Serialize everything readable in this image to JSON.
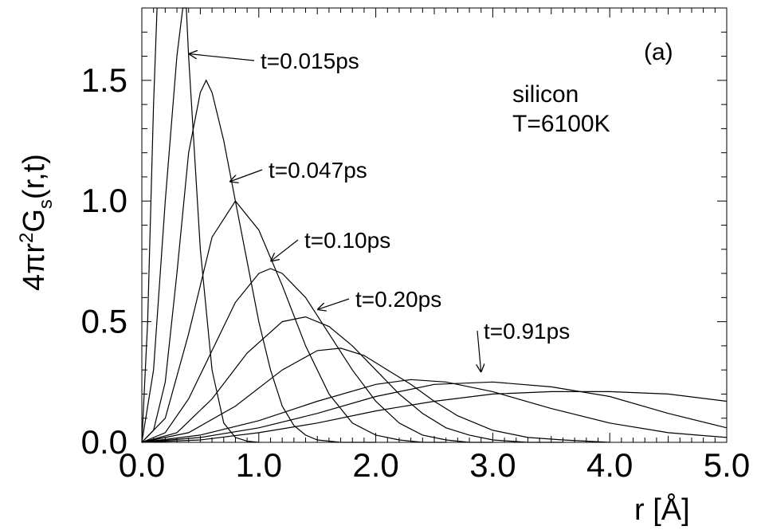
{
  "chart_data": {
    "type": "line",
    "panel_label": "(a)",
    "annotation_lines": [
      "silicon",
      "T=6100K"
    ],
    "xlabel": "r [Å]",
    "ylabel": {
      "base": "4πr",
      "sup": "2",
      "mid": "G",
      "sub": "s",
      "tail": "(r,t)"
    },
    "xlim": [
      0,
      5
    ],
    "ylim": [
      0,
      1.8
    ],
    "xticks": [
      0,
      1,
      2,
      3,
      4,
      5
    ],
    "xtick_labels": [
      "0.0",
      "1.0",
      "2.0",
      "3.0",
      "4.0",
      "5.0"
    ],
    "yticks": [
      0,
      0.5,
      1.0,
      1.5
    ],
    "ytick_labels": [
      "0.0",
      "0.5",
      "1.0",
      "1.5"
    ],
    "series": [
      {
        "name": "t=0.015ps",
        "x": [
          0,
          0.05,
          0.1,
          0.13
        ],
        "y": [
          0,
          0.5,
          1.4,
          1.8
        ]
      },
      {
        "name": "",
        "x": [
          0,
          0.1,
          0.2,
          0.3,
          0.35,
          0.38,
          0.4,
          0.5,
          0.6,
          0.7,
          0.8,
          0.9,
          1.0
        ],
        "y": [
          0,
          0.3,
          1.0,
          1.6,
          1.8,
          1.8,
          1.6,
          0.8,
          0.3,
          0.08,
          0.02,
          0.005,
          0
        ]
      },
      {
        "name": "t=0.047ps",
        "x": [
          0,
          0.1,
          0.2,
          0.3,
          0.4,
          0.5,
          0.55,
          0.6,
          0.7,
          0.8,
          0.9,
          1.0,
          1.1,
          1.2,
          1.3,
          1.4,
          1.5,
          1.7,
          2.0
        ],
        "y": [
          0,
          0.05,
          0.25,
          0.7,
          1.2,
          1.45,
          1.5,
          1.45,
          1.25,
          1.0,
          0.75,
          0.5,
          0.3,
          0.15,
          0.07,
          0.03,
          0.01,
          0,
          0
        ]
      },
      {
        "name": "",
        "x": [
          0,
          0.2,
          0.4,
          0.6,
          0.8,
          1.0,
          1.2,
          1.4,
          1.6,
          1.8,
          2.0,
          2.2,
          2.4,
          2.6
        ],
        "y": [
          0,
          0.1,
          0.45,
          0.85,
          1.0,
          0.88,
          0.65,
          0.4,
          0.2,
          0.08,
          0.03,
          0.01,
          0,
          0
        ]
      },
      {
        "name": "t=0.10ps",
        "x": [
          0,
          0.2,
          0.4,
          0.6,
          0.8,
          1.0,
          1.1,
          1.2,
          1.4,
          1.6,
          1.8,
          2.0,
          2.2,
          2.4,
          2.6,
          2.8,
          3.0
        ],
        "y": [
          0,
          0.04,
          0.18,
          0.38,
          0.58,
          0.7,
          0.72,
          0.7,
          0.6,
          0.45,
          0.3,
          0.17,
          0.08,
          0.03,
          0.01,
          0,
          0
        ]
      },
      {
        "name": "",
        "x": [
          0,
          0.3,
          0.6,
          0.9,
          1.2,
          1.4,
          1.6,
          1.8,
          2.0,
          2.2,
          2.4,
          2.6,
          2.8,
          3.0,
          3.3,
          3.6
        ],
        "y": [
          0,
          0.04,
          0.18,
          0.37,
          0.5,
          0.52,
          0.48,
          0.4,
          0.3,
          0.2,
          0.12,
          0.06,
          0.03,
          0.01,
          0,
          0
        ]
      },
      {
        "name": "t=0.20ps",
        "x": [
          0,
          0.4,
          0.8,
          1.2,
          1.5,
          1.7,
          1.9,
          2.1,
          2.3,
          2.5,
          2.7,
          3.0,
          3.3,
          3.6,
          4.0
        ],
        "y": [
          0,
          0.04,
          0.15,
          0.3,
          0.38,
          0.39,
          0.36,
          0.3,
          0.24,
          0.17,
          0.11,
          0.05,
          0.02,
          0.01,
          0
        ]
      },
      {
        "name": "",
        "x": [
          0,
          0.5,
          1.0,
          1.5,
          2.0,
          2.3,
          2.6,
          3.0,
          3.5,
          4.0,
          4.5,
          5.0
        ],
        "y": [
          0,
          0.03,
          0.09,
          0.17,
          0.24,
          0.26,
          0.25,
          0.21,
          0.14,
          0.08,
          0.04,
          0.02
        ]
      },
      {
        "name": "",
        "x": [
          0,
          0.5,
          1.0,
          1.5,
          2.0,
          2.5,
          3.0,
          3.5,
          4.0,
          4.5,
          5.0
        ],
        "y": [
          0,
          0.02,
          0.06,
          0.12,
          0.19,
          0.24,
          0.25,
          0.23,
          0.19,
          0.12,
          0.06
        ]
      },
      {
        "name": "t=0.91ps",
        "x": [
          0,
          0.5,
          1.0,
          1.5,
          2.0,
          2.5,
          3.0,
          3.5,
          4.0,
          4.5,
          5.0
        ],
        "y": [
          0,
          0.01,
          0.04,
          0.08,
          0.13,
          0.17,
          0.2,
          0.21,
          0.21,
          0.2,
          0.17
        ]
      }
    ],
    "annotations": [
      {
        "text": "t=0.015ps",
        "arrow_to": [
          0.4,
          1.61
        ]
      },
      {
        "text": "t=0.047ps",
        "arrow_to": [
          0.75,
          1.08
        ]
      },
      {
        "text": "t=0.10ps",
        "arrow_to": [
          1.1,
          0.75
        ]
      },
      {
        "text": "t=0.20ps",
        "arrow_to": [
          1.5,
          0.55
        ]
      },
      {
        "text": "t=0.91ps",
        "arrow_to": [
          2.9,
          0.29
        ]
      }
    ],
    "grid": false
  }
}
